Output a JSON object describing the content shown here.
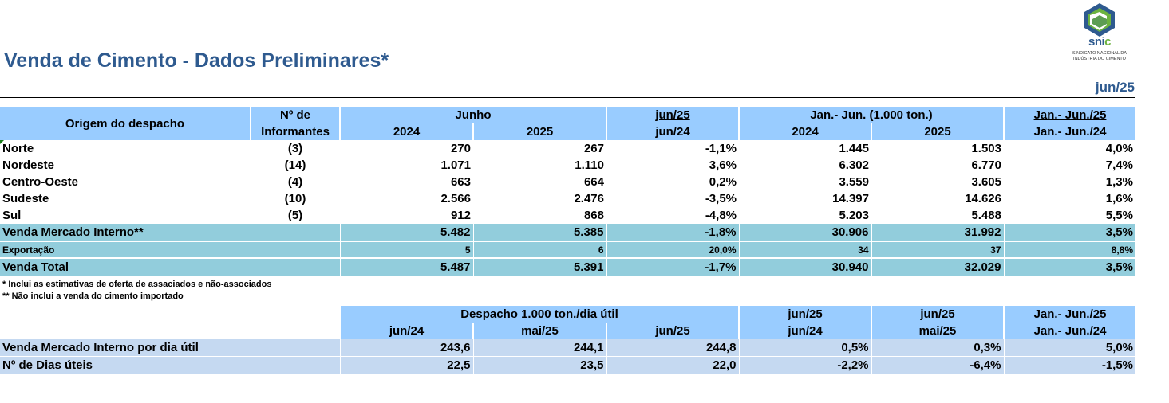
{
  "header": {
    "title": "Venda de Cimento - Dados Preliminares*",
    "period": "jun/25",
    "logo": {
      "brand_main": "sni",
      "brand_accent": "c",
      "org_line1": "SINDICATO NACIONAL DA",
      "org_line2": "INDÚSTRIA DO CIMENTO"
    }
  },
  "colors": {
    "title": "#2e5a8f",
    "header_fill": "#99ccff",
    "total_fill": "#92cddc",
    "per_day_fill": "#c5d9f1",
    "logo_blue": "#2e5a8f",
    "logo_green": "#6cb33f"
  },
  "table1": {
    "head": {
      "origin": "Origem do despacho",
      "informants_1": "Nº de",
      "informants_2": "Informantes",
      "junho": "Junho",
      "y2024": "2024",
      "y2025": "2025",
      "var_top": "jun/25",
      "var_bottom": "jun/24",
      "jan_jun": "Jan.- Jun. (1.000 ton.)",
      "ytd_2024": "2024",
      "ytd_2025": "2025",
      "ytd_var_top": "Jan.- Jun./25",
      "ytd_var_bottom": "Jan.- Jun./24"
    },
    "rows": [
      {
        "region": "Norte",
        "informants": "(3)",
        "jun24": "270",
        "jun25": "267",
        "var": "-1,1%",
        "ytd24": "1.445",
        "ytd25": "1.503",
        "ytd_var": "4,0%"
      },
      {
        "region": "Nordeste",
        "informants": "(14)",
        "jun24": "1.071",
        "jun25": "1.110",
        "var": "3,6%",
        "ytd24": "6.302",
        "ytd25": "6.770",
        "ytd_var": "7,4%"
      },
      {
        "region": "Centro-Oeste",
        "informants": "(4)",
        "jun24": "663",
        "jun25": "664",
        "var": "0,2%",
        "ytd24": "3.559",
        "ytd25": "3.605",
        "ytd_var": "1,3%"
      },
      {
        "region": "Sudeste",
        "informants": "(10)",
        "jun24": "2.566",
        "jun25": "2.476",
        "var": "-3,5%",
        "ytd24": "14.397",
        "ytd25": "14.626",
        "ytd_var": "1,6%"
      },
      {
        "region": "Sul",
        "informants": "(5)",
        "jun24": "912",
        "jun25": "868",
        "var": "-4,8%",
        "ytd24": "5.203",
        "ytd25": "5.488",
        "ytd_var": "5,5%"
      }
    ],
    "totals": [
      {
        "label": "Venda Mercado Interno**",
        "jun24": "5.482",
        "jun25": "5.385",
        "var": "-1,8%",
        "ytd24": "30.906",
        "ytd25": "31.992",
        "ytd_var": "3,5%"
      },
      {
        "label": "Exportação",
        "jun24": "5",
        "jun25": "6",
        "var": "20,0%",
        "ytd24": "34",
        "ytd25": "37",
        "ytd_var": "8,8%"
      },
      {
        "label": "Venda Total",
        "jun24": "5.487",
        "jun25": "5.391",
        "var": "-1,7%",
        "ytd24": "30.940",
        "ytd25": "32.029",
        "ytd_var": "3,5%"
      }
    ]
  },
  "notes": {
    "n1": "* Inclui as estimativas de oferta de assaciados e não-associados",
    "n2": "** Não inclui a venda do cimento importado"
  },
  "table2": {
    "head": {
      "despacho": "Despacho 1.000 ton./dia útil",
      "c1": "jun/24",
      "c2": "mai/25",
      "c3": "jun/25",
      "v1_top": "jun/25",
      "v1_bottom": "jun/24",
      "v2_top": "jun/25",
      "v2_bottom": "mai/25",
      "v3_top": "Jan.- Jun./25",
      "v3_bottom": "Jan.- Jun./24"
    },
    "rows": [
      {
        "label": "Venda Mercado Interno por dia útil",
        "c1": "243,6",
        "c2": "244,1",
        "c3": "244,8",
        "v1": "0,5%",
        "v2": "0,3%",
        "v3": "5,0%"
      },
      {
        "label": "Nº de Dias úteis",
        "c1": "22,5",
        "c2": "23,5",
        "c3": "22,0",
        "v1": "-2,2%",
        "v2": "-6,4%",
        "v3": "-1,5%"
      }
    ]
  }
}
